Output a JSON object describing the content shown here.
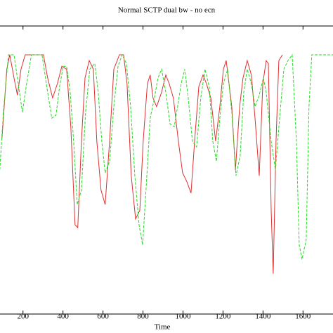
{
  "chart_data": {
    "type": "line",
    "title": "Normal SCTP dual bw - no ecn",
    "x_label": "Time",
    "xlim": [
      85,
      1750
    ],
    "xticks": [
      200,
      400,
      600,
      800,
      1000,
      1200,
      1400,
      1600
    ],
    "ylim": [
      0,
      100
    ],
    "series": [
      {
        "color": "#e03030",
        "dash": false,
        "x": [
          95,
          119,
          134,
          155,
          172,
          190,
          211,
          232,
          278,
          302,
          323,
          348,
          372,
          394,
          418,
          439,
          460,
          474,
          492,
          510,
          531,
          552,
          569,
          590,
          611,
          633,
          654,
          682,
          703,
          720,
          741,
          763,
          784,
          801,
          822,
          836,
          850,
          868,
          893,
          914,
          931,
          952,
          977,
          998,
          1019,
          1040,
          1058,
          1079,
          1100,
          1117,
          1139,
          1163,
          1184,
          1202,
          1216,
          1244,
          1262,
          1283,
          1300,
          1321,
          1342,
          1360,
          1381,
          1399,
          1416,
          1427,
          1441,
          1451,
          1465,
          1479,
          1497
        ],
        "values": [
          61,
          85,
          90,
          82,
          76,
          85,
          90,
          90,
          90,
          90,
          82,
          75,
          80,
          86,
          85,
          65,
          31,
          30,
          60,
          82,
          88,
          85,
          60,
          43,
          38,
          60,
          85,
          90,
          90,
          80,
          48,
          33,
          36,
          60,
          80,
          83,
          75,
          72,
          77,
          83,
          80,
          75,
          60,
          49,
          46,
          42,
          60,
          79,
          83,
          80,
          75,
          60,
          72,
          85,
          88,
          72,
          50,
          72,
          82,
          88,
          83,
          68,
          48,
          80,
          88,
          87,
          36,
          14,
          60,
          88,
          90
        ]
      },
      {
        "color": "#22dd22",
        "dash": true,
        "x": [
          84,
          102,
          127,
          155,
          176,
          197,
          218,
          242,
          295,
          323,
          344,
          365,
          383,
          401,
          418,
          436,
          453,
          471,
          492,
          513,
          534,
          559,
          576,
          594,
          611,
          633,
          654,
          675,
          696,
          717,
          738,
          759,
          780,
          798,
          815,
          836,
          857,
          875,
          893,
          914,
          935,
          956,
          973,
          991,
          1009,
          1026,
          1047,
          1068,
          1089,
          1110,
          1131,
          1149,
          1167,
          1184,
          1202,
          1223,
          1244,
          1265,
          1286,
          1304,
          1321,
          1342,
          1360,
          1381,
          1402,
          1416,
          1441,
          1462,
          1483,
          1504,
          1525,
          1546,
          1567,
          1581,
          1595,
          1616,
          1630,
          1644,
          1750
        ],
        "values": [
          50,
          70,
          90,
          90,
          80,
          70,
          80,
          90,
          90,
          77,
          68,
          69,
          79,
          86,
          86,
          77,
          60,
          38,
          43,
          70,
          85,
          87,
          77,
          60,
          49,
          53,
          72,
          86,
          90,
          87,
          72,
          48,
          31,
          24,
          43,
          68,
          75,
          82,
          85,
          77,
          66,
          65,
          72,
          80,
          85,
          75,
          60,
          58,
          75,
          85,
          79,
          60,
          53,
          68,
          80,
          85,
          70,
          48,
          55,
          77,
          85,
          80,
          72,
          76,
          82,
          77,
          60,
          50,
          68,
          85,
          88,
          90,
          60,
          24,
          19,
          26,
          72,
          90,
          90
        ]
      }
    ]
  }
}
